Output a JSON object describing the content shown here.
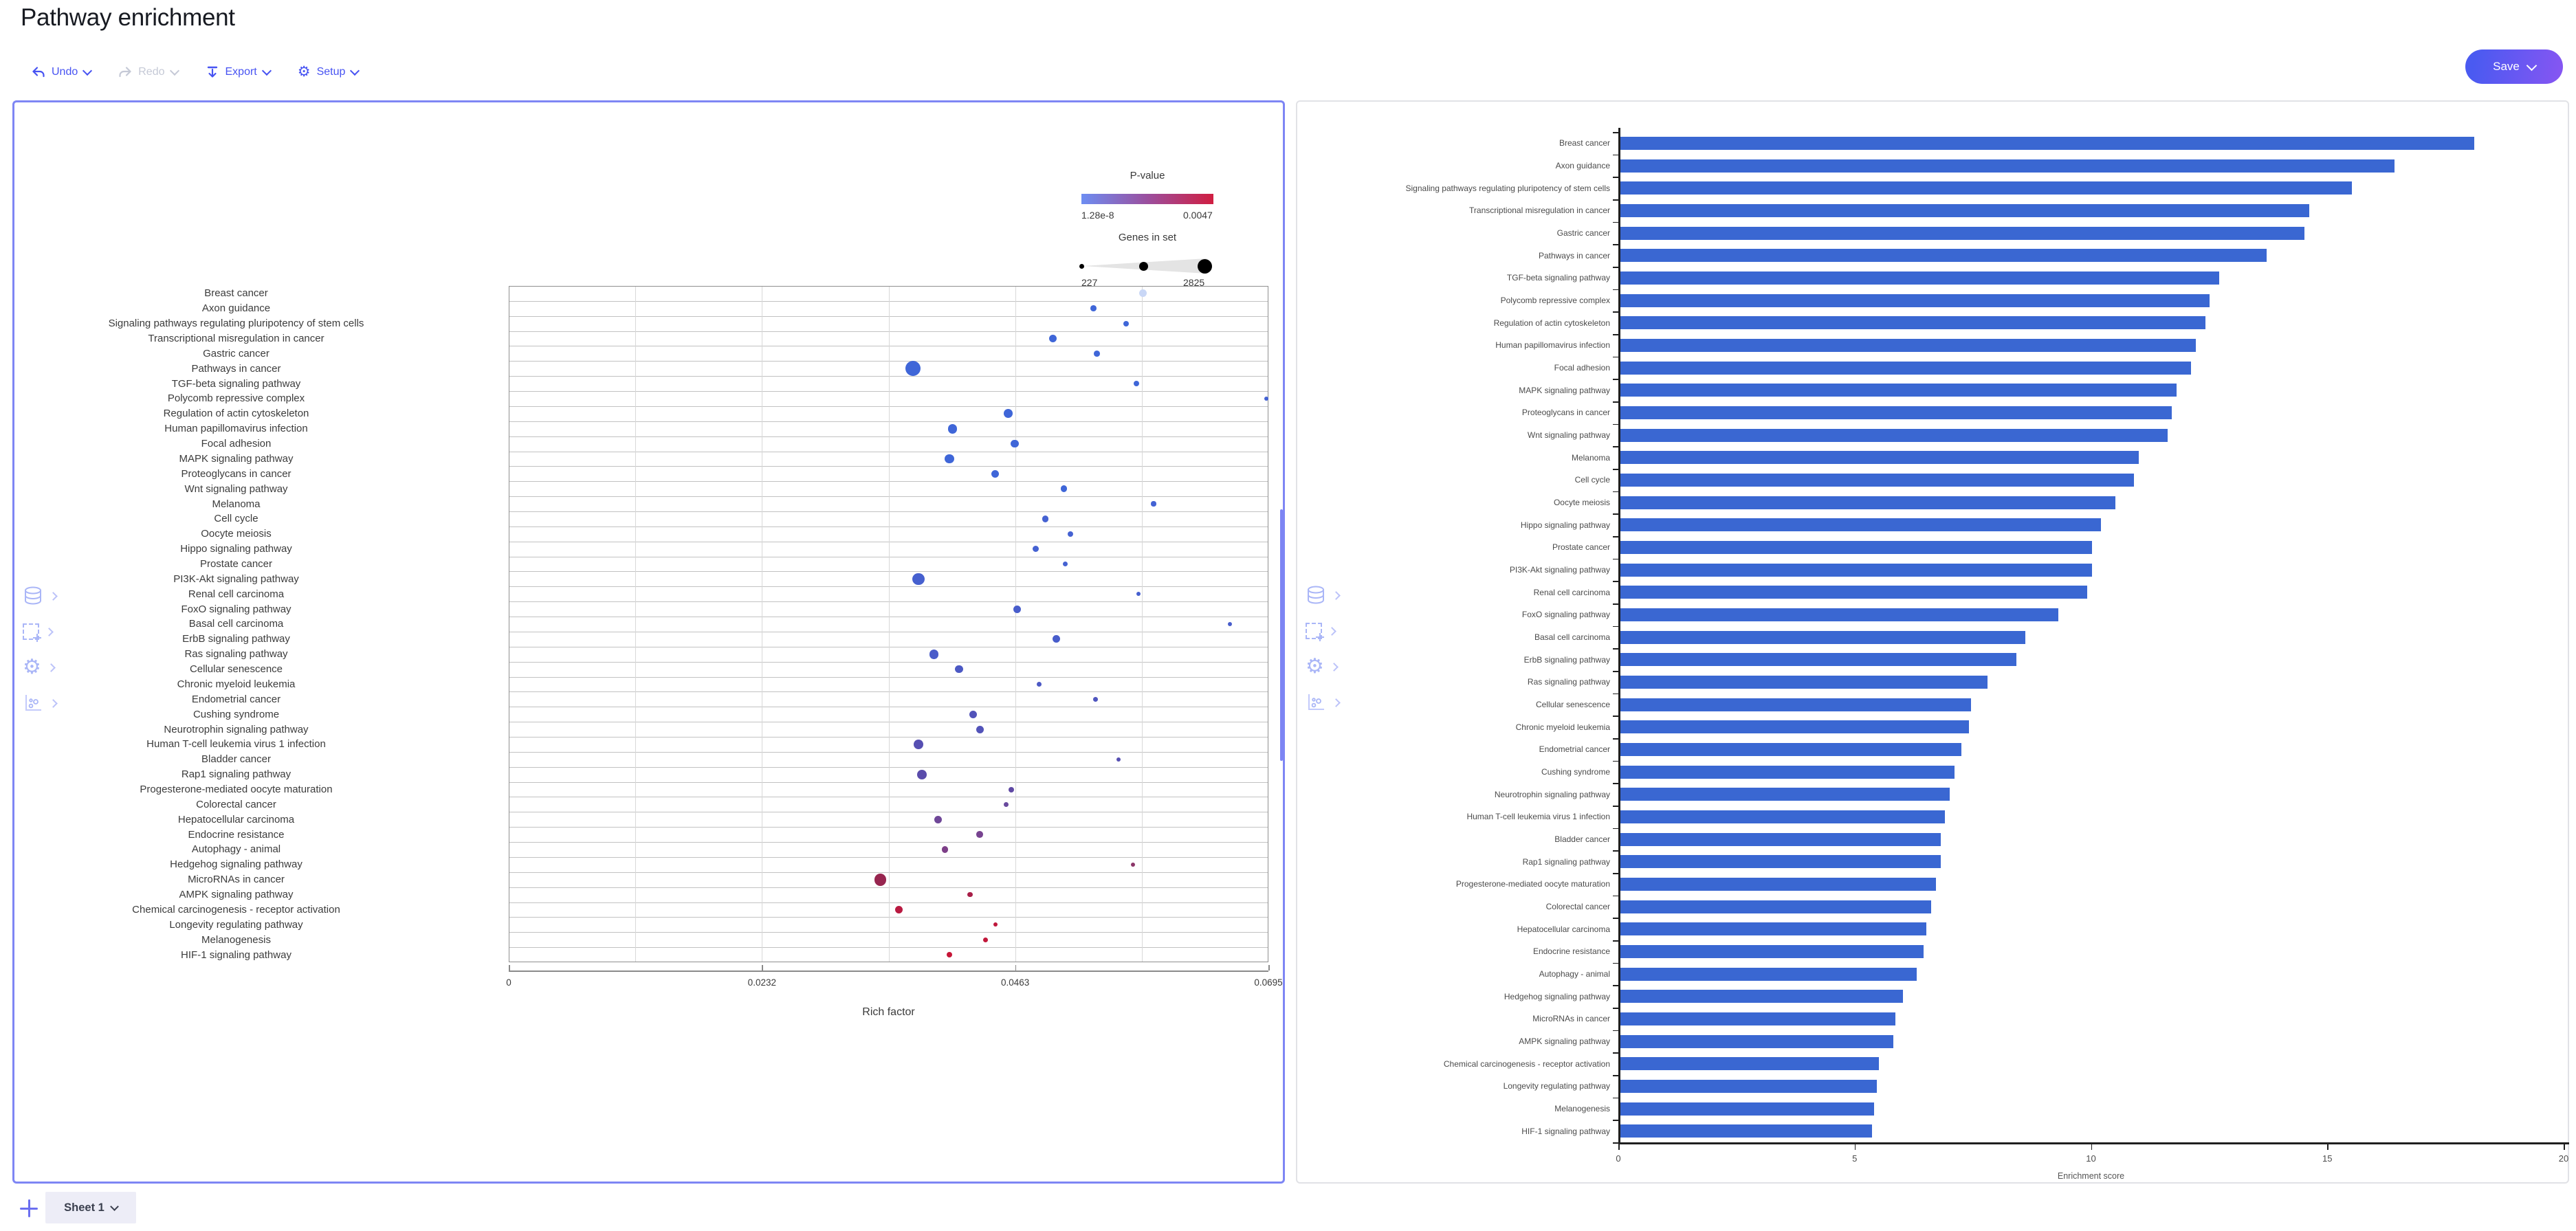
{
  "header": {
    "title": "Pathway enrichment"
  },
  "toolbar": {
    "undo_label": "Undo",
    "redo_label": "Redo",
    "export_label": "Export",
    "setup_label": "Setup",
    "save_label": "Save"
  },
  "footer": {
    "sheet_tab_label": "Sheet 1"
  },
  "colors": {
    "accent": "#4753f2",
    "disabled": "#c5c9d6",
    "panel_selected_border": "#7e86f4",
    "panel_border": "#e1e2e6",
    "bar_color": "#3a67d2",
    "save_gradient_start": "#4a5af1",
    "save_gradient_end": "#8456f2",
    "edge_icon": "#aab6f7"
  },
  "panel_icon_names": [
    "data-source-icon",
    "add-selection-icon",
    "settings-icon",
    "chart-type-icon"
  ],
  "chart_data": [
    {
      "type": "scatter",
      "title": "",
      "xlabel": "Rich factor",
      "ylabel": "",
      "xlim": [
        0,
        0.0695
      ],
      "x_ticks": [
        "0",
        "0.0232",
        "0.0463",
        "0.0695"
      ],
      "grid": true,
      "legend": {
        "p_value": {
          "title": "P-value",
          "min_label": "1.28e-8",
          "max_label": "0.0047",
          "gradient": [
            "#6d8df2",
            "#9b4f9e",
            "#d01e41"
          ]
        },
        "genes_in_set": {
          "title": "Genes in set",
          "min_label": "227",
          "max_label": "2825",
          "min": 227,
          "max": 2825
        }
      },
      "points": [
        {
          "pathway": "Breast cancer",
          "rich_factor": 0.058,
          "genes_in_set": 800,
          "color": "#c9d7f6"
        },
        {
          "pathway": "Axon guidance",
          "rich_factor": 0.0535,
          "genes_in_set": 550,
          "color": "#3f66d8"
        },
        {
          "pathway": "Signaling pathways regulating pluripotency of stem cells",
          "rich_factor": 0.0565,
          "genes_in_set": 480,
          "color": "#3f66d8"
        },
        {
          "pathway": "Transcriptional misregulation in cancer",
          "rich_factor": 0.0498,
          "genes_in_set": 800,
          "color": "#3f66d8"
        },
        {
          "pathway": "Gastric cancer",
          "rich_factor": 0.0538,
          "genes_in_set": 550,
          "color": "#3f66d8"
        },
        {
          "pathway": "Pathways in cancer",
          "rich_factor": 0.037,
          "genes_in_set": 2825,
          "color": "#3f66d8"
        },
        {
          "pathway": "TGF-beta signaling pathway",
          "rich_factor": 0.0574,
          "genes_in_set": 480,
          "color": "#3f66d8"
        },
        {
          "pathway": "Polycomb repressive complex",
          "rich_factor": 0.0693,
          "genes_in_set": 300,
          "color": "#4463d4"
        },
        {
          "pathway": "Regulation of actin cytoskeleton",
          "rich_factor": 0.0457,
          "genes_in_set": 1050,
          "color": "#3f66d8"
        },
        {
          "pathway": "Human papillomavirus infection",
          "rich_factor": 0.0406,
          "genes_in_set": 1200,
          "color": "#3f66d8"
        },
        {
          "pathway": "Focal adhesion",
          "rich_factor": 0.0463,
          "genes_in_set": 900,
          "color": "#3f66d8"
        },
        {
          "pathway": "MAPK signaling pathway",
          "rich_factor": 0.0403,
          "genes_in_set": 1200,
          "color": "#3f66d8"
        },
        {
          "pathway": "Proteoglycans in cancer",
          "rich_factor": 0.0445,
          "genes_in_set": 900,
          "color": "#3f66d8"
        },
        {
          "pathway": "Wnt signaling pathway",
          "rich_factor": 0.0508,
          "genes_in_set": 650,
          "color": "#3f66d8"
        },
        {
          "pathway": "Melanoma",
          "rich_factor": 0.059,
          "genes_in_set": 400,
          "color": "#4463d4"
        },
        {
          "pathway": "Cell cycle",
          "rich_factor": 0.0491,
          "genes_in_set": 650,
          "color": "#4562d2"
        },
        {
          "pathway": "Oocyte meiosis",
          "rich_factor": 0.0514,
          "genes_in_set": 480,
          "color": "#4562d2"
        },
        {
          "pathway": "Hippo signaling pathway",
          "rich_factor": 0.0482,
          "genes_in_set": 650,
          "color": "#4562d2"
        },
        {
          "pathway": "Prostate cancer",
          "rich_factor": 0.0509,
          "genes_in_set": 400,
          "color": "#4562d2"
        },
        {
          "pathway": "PI3K-Akt signaling pathway",
          "rich_factor": 0.0375,
          "genes_in_set": 1900,
          "color": "#4660cf"
        },
        {
          "pathway": "Renal cell carcinoma",
          "rich_factor": 0.0576,
          "genes_in_set": 300,
          "color": "#4660cf"
        },
        {
          "pathway": "FoxO signaling pathway",
          "rich_factor": 0.0465,
          "genes_in_set": 800,
          "color": "#485dcb"
        },
        {
          "pathway": "Basal cell carcinoma",
          "rich_factor": 0.066,
          "genes_in_set": 300,
          "color": "#485dcb"
        },
        {
          "pathway": "ErbB signaling pathway",
          "rich_factor": 0.0501,
          "genes_in_set": 800,
          "color": "#485dcb"
        },
        {
          "pathway": "Ras signaling pathway",
          "rich_factor": 0.0389,
          "genes_in_set": 1200,
          "color": "#4a5cc9"
        },
        {
          "pathway": "Cellular senescence",
          "rich_factor": 0.0412,
          "genes_in_set": 900,
          "color": "#4c59c4"
        },
        {
          "pathway": "Chronic myeloid leukemia",
          "rich_factor": 0.0485,
          "genes_in_set": 400,
          "color": "#4c59c4"
        },
        {
          "pathway": "Endometrial cancer",
          "rich_factor": 0.0537,
          "genes_in_set": 400,
          "color": "#4f56bf"
        },
        {
          "pathway": "Cushing syndrome",
          "rich_factor": 0.0425,
          "genes_in_set": 800,
          "color": "#5253b9"
        },
        {
          "pathway": "Neurotrophin signaling pathway",
          "rich_factor": 0.0431,
          "genes_in_set": 800,
          "color": "#5253b9"
        },
        {
          "pathway": "Human T-cell leukemia virus 1 infection",
          "rich_factor": 0.0375,
          "genes_in_set": 1200,
          "color": "#564fb2"
        },
        {
          "pathway": "Bladder cancer",
          "rich_factor": 0.0558,
          "genes_in_set": 300,
          "color": "#564fb2"
        },
        {
          "pathway": "Rap1 signaling pathway",
          "rich_factor": 0.0378,
          "genes_in_set": 1200,
          "color": "#5a4cab"
        },
        {
          "pathway": "Progesterone-mediated oocyte maturation",
          "rich_factor": 0.046,
          "genes_in_set": 480,
          "color": "#5f49a4"
        },
        {
          "pathway": "Colorectal cancer",
          "rich_factor": 0.0455,
          "genes_in_set": 400,
          "color": "#694a9e"
        },
        {
          "pathway": "Hepatocellular carcinoma",
          "rich_factor": 0.0393,
          "genes_in_set": 800,
          "color": "#6f4798"
        },
        {
          "pathway": "Endocrine resistance",
          "rich_factor": 0.0431,
          "genes_in_set": 650,
          "color": "#774390"
        },
        {
          "pathway": "Autophagy - animal",
          "rich_factor": 0.0399,
          "genes_in_set": 650,
          "color": "#7d3f88"
        },
        {
          "pathway": "Hedgehog signaling pathway",
          "rich_factor": 0.0571,
          "genes_in_set": 300,
          "color": "#8c3569"
        },
        {
          "pathway": "MicroRNAs in cancer",
          "rich_factor": 0.034,
          "genes_in_set": 1900,
          "color": "#97254f"
        },
        {
          "pathway": "AMPK signaling pathway",
          "rich_factor": 0.0422,
          "genes_in_set": 400,
          "color": "#a81f48"
        },
        {
          "pathway": "Chemical carcinogenesis - receptor activation",
          "rich_factor": 0.0357,
          "genes_in_set": 800,
          "color": "#b91a41"
        },
        {
          "pathway": "Longevity regulating pathway",
          "rich_factor": 0.0445,
          "genes_in_set": 300,
          "color": "#bf183c"
        },
        {
          "pathway": "Melanogenesis",
          "rich_factor": 0.0436,
          "genes_in_set": 400,
          "color": "#c2173a"
        },
        {
          "pathway": "HIF-1 signaling pathway",
          "rich_factor": 0.0403,
          "genes_in_set": 480,
          "color": "#c61637"
        }
      ]
    },
    {
      "type": "bar",
      "orientation": "horizontal",
      "title": "",
      "xlabel": "Enrichment score",
      "xlim": [
        0,
        20
      ],
      "x_ticks": [
        0,
        5,
        10,
        15,
        20
      ],
      "bar_color": "#3a67d2",
      "legend_position": "none",
      "categories": [
        "Breast cancer",
        "Axon guidance",
        "Signaling pathways regulating pluripotency of stem cells",
        "Transcriptional misregulation in cancer",
        "Gastric cancer",
        "Pathways in cancer",
        "TGF-beta signaling pathway",
        "Polycomb repressive complex",
        "Regulation of actin cytoskeleton",
        "Human papillomavirus infection",
        "Focal adhesion",
        "MAPK signaling pathway",
        "Proteoglycans in cancer",
        "Wnt signaling pathway",
        "Melanoma",
        "Cell cycle",
        "Oocyte meiosis",
        "Hippo signaling pathway",
        "Prostate cancer",
        "PI3K-Akt signaling pathway",
        "Renal cell carcinoma",
        "FoxO signaling pathway",
        "Basal cell carcinoma",
        "ErbB signaling pathway",
        "Ras signaling pathway",
        "Cellular senescence",
        "Chronic myeloid leukemia",
        "Endometrial cancer",
        "Cushing syndrome",
        "Neurotrophin signaling pathway",
        "Human T-cell leukemia virus 1 infection",
        "Bladder cancer",
        "Rap1 signaling pathway",
        "Progesterone-mediated oocyte maturation",
        "Colorectal cancer",
        "Hepatocellular carcinoma",
        "Endocrine resistance",
        "Autophagy - animal",
        "Hedgehog signaling pathway",
        "MicroRNAs in cancer",
        "AMPK signaling pathway",
        "Chemical carcinogenesis - receptor activation",
        "Longevity regulating pathway",
        "Melanogenesis",
        "HIF-1 signaling pathway"
      ],
      "values": [
        18.1,
        16.4,
        15.5,
        14.6,
        14.5,
        13.7,
        12.7,
        12.5,
        12.4,
        12.2,
        12.1,
        11.8,
        11.7,
        11.6,
        11.0,
        10.9,
        10.5,
        10.2,
        10.0,
        10.0,
        9.9,
        9.3,
        8.6,
        8.4,
        7.8,
        7.45,
        7.4,
        7.25,
        7.1,
        7.0,
        6.9,
        6.8,
        6.8,
        6.7,
        6.6,
        6.5,
        6.45,
        6.3,
        6.0,
        5.85,
        5.8,
        5.5,
        5.45,
        5.4,
        5.35
      ]
    }
  ]
}
